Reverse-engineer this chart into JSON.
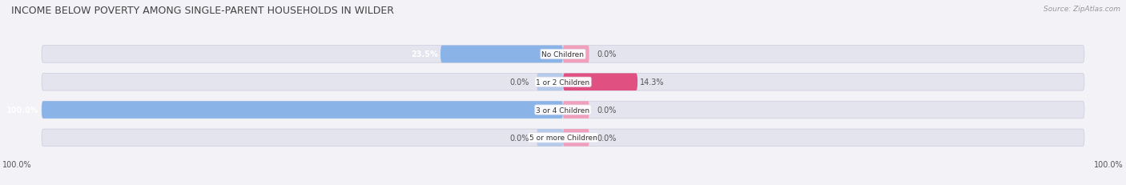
{
  "title": "INCOME BELOW POVERTY AMONG SINGLE-PARENT HOUSEHOLDS IN WILDER",
  "source": "Source: ZipAtlas.com",
  "categories": [
    "No Children",
    "1 or 2 Children",
    "3 or 4 Children",
    "5 or more Children"
  ],
  "single_father": [
    23.5,
    0.0,
    100.0,
    0.0
  ],
  "single_mother": [
    0.0,
    14.3,
    0.0,
    0.0
  ],
  "father_color": "#8ab4e8",
  "mother_color_soft": "#f0a0bb",
  "mother_color_bright": "#e05080",
  "bg_color": "#f2f2f7",
  "bar_bg_color": "#e4e4ee",
  "row_bg_color": "#e8e8f0",
  "title_color": "#444444",
  "label_color": "#555555",
  "white": "#ffffff",
  "max_value": 100.0,
  "figsize": [
    14.06,
    2.32
  ],
  "dpi": 100,
  "bottom_labels": [
    "100.0%",
    "100.0%"
  ]
}
